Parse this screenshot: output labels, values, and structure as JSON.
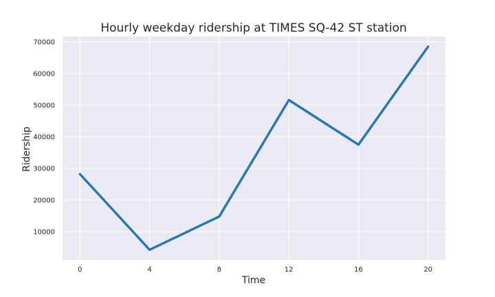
{
  "chart_data": {
    "type": "line",
    "title": "Hourly weekday ridership at TIMES SQ-42 ST station",
    "xlabel": "Time",
    "ylabel": "Ridership",
    "x": [
      0,
      4,
      8,
      12,
      16,
      20
    ],
    "series": [
      {
        "values": [
          28200,
          4300,
          14800,
          51600,
          37500,
          68500
        ],
        "color": "#2878b5"
      }
    ],
    "xticks": [
      0,
      4,
      8,
      12,
      16,
      20
    ],
    "yticks": [
      10000,
      20000,
      30000,
      40000,
      50000,
      60000,
      70000
    ],
    "xlim": [
      -1,
      21
    ],
    "ylim": [
      1100,
      71700
    ],
    "grid": true,
    "background": "#eaeaf2",
    "grid_color": "#ffffff"
  }
}
